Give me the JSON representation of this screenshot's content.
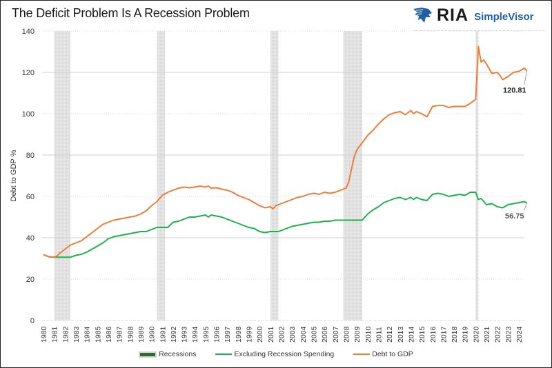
{
  "header": {
    "title": "The Deficit Problem Is A Recession Problem",
    "logo_mark": "eagle-logo-icon",
    "logo_text": "RIA",
    "logo_subtext": "SimpleVisor"
  },
  "colors": {
    "debt_to_gdp": "#ef7b35",
    "excluding_recession": "#19b34a",
    "recession_fill": "#d4d4d4",
    "recession_legend": "#2e6b2e",
    "logo_blue": "#1f5fa8"
  },
  "chart_data": {
    "type": "line",
    "title": "The Deficit Problem Is A Recession Problem",
    "xlabel": "",
    "ylabel": "Debt to GDP %",
    "ylim": [
      0,
      140
    ],
    "xlim": [
      1980,
      2024.75
    ],
    "yticks": [
      0,
      20,
      40,
      60,
      80,
      100,
      120,
      140
    ],
    "xticks": [
      "1980",
      "1981",
      "1982",
      "1983",
      "1984",
      "1985",
      "1986",
      "1987",
      "1988",
      "1989",
      "1990",
      "1991",
      "1992",
      "1993",
      "1994",
      "1995",
      "1996",
      "1997",
      "1998",
      "1999",
      "2000",
      "2001",
      "2002",
      "2003",
      "2004",
      "2005",
      "2006",
      "2007",
      "2008",
      "2009",
      "2010",
      "2011",
      "2012",
      "2013",
      "2014",
      "2015",
      "2016",
      "2017",
      "2018",
      "2019",
      "2020",
      "2021",
      "2022",
      "2023",
      "2024"
    ],
    "grid": true,
    "legend_position": "bottom",
    "recessions": [
      {
        "start": 1981.0,
        "end": 1982.5
      },
      {
        "start": 1990.5,
        "end": 1991.25
      },
      {
        "start": 2001.0,
        "end": 2001.75
      },
      {
        "start": 2007.75,
        "end": 2009.5
      },
      {
        "start": 2020.0,
        "end": 2020.25
      }
    ],
    "series": [
      {
        "name": "Debt to GDP",
        "x": [
          1980,
          1980.5,
          1981,
          1981.25,
          1981.5,
          1982,
          1982.5,
          1983,
          1983.5,
          1984,
          1984.5,
          1985,
          1985.5,
          1986,
          1986.5,
          1987,
          1987.5,
          1988,
          1988.5,
          1989,
          1989.5,
          1990,
          1990.5,
          1991,
          1991.5,
          1992,
          1992.5,
          1993,
          1993.5,
          1994,
          1994.5,
          1995,
          1995.25,
          1995.5,
          1996,
          1996.5,
          1997,
          1997.5,
          1998,
          1998.5,
          1999,
          1999.5,
          2000,
          2000.5,
          2001,
          2001.25,
          2001.5,
          2002,
          2002.5,
          2003,
          2003.5,
          2004,
          2004.5,
          2005,
          2005.5,
          2006,
          2006.5,
          2007,
          2007.5,
          2008,
          2008.25,
          2008.5,
          2008.75,
          2009,
          2009.5,
          2010,
          2010.5,
          2011,
          2011.5,
          2012,
          2012.5,
          2013,
          2013.5,
          2014,
          2014.25,
          2014.5,
          2015,
          2015.5,
          2016,
          2016.5,
          2017,
          2017.5,
          2018,
          2018.5,
          2019,
          2019.5,
          2020,
          2020.25,
          2020.5,
          2020.75,
          2021,
          2021.5,
          2022,
          2022.25,
          2022.5,
          2023,
          2023.5,
          2024,
          2024.5,
          2024.75
        ],
        "values": [
          31.8,
          30.8,
          30.6,
          31.2,
          32.5,
          34.5,
          36.5,
          37.5,
          38.5,
          40.5,
          42.5,
          44.5,
          46.5,
          47.5,
          48.5,
          49.0,
          49.5,
          50.0,
          50.5,
          51.5,
          53.0,
          55.5,
          57.5,
          60.5,
          62.0,
          63.0,
          64.0,
          64.5,
          64.2,
          64.5,
          65.0,
          64.5,
          65.0,
          64.0,
          64.2,
          63.5,
          63.0,
          62.0,
          60.5,
          59.5,
          58.5,
          57.0,
          55.5,
          54.5,
          55.0,
          54.0,
          55.5,
          56.5,
          57.5,
          58.5,
          59.5,
          60.0,
          61.0,
          61.5,
          61.0,
          62.0,
          61.5,
          62.0,
          63.0,
          64.0,
          67.0,
          73.0,
          79.0,
          82.5,
          86.0,
          89.5,
          92.0,
          95.0,
          97.5,
          99.5,
          100.5,
          101.0,
          99.5,
          101.5,
          100.0,
          101.0,
          100.0,
          98.5,
          103.5,
          104.0,
          104.0,
          103.0,
          103.5,
          103.5,
          103.5,
          105.0,
          107.0,
          132.5,
          125.0,
          126.0,
          124.0,
          119.5,
          120.0,
          118.5,
          116.5,
          118.0,
          120.0,
          120.5,
          122.0,
          120.81
        ]
      },
      {
        "name": "Excluding Recession Spending",
        "x": [
          1980,
          1980.5,
          1981,
          1981.5,
          1982,
          1982.5,
          1983,
          1983.5,
          1984,
          1984.5,
          1985,
          1985.5,
          1986,
          1986.5,
          1987,
          1987.5,
          1988,
          1988.5,
          1989,
          1989.5,
          1990,
          1990.5,
          1991,
          1991.25,
          1991.5,
          1992,
          1992.5,
          1993,
          1993.5,
          1994,
          1994.5,
          1995,
          1995.25,
          1995.5,
          1996,
          1996.5,
          1997,
          1997.5,
          1998,
          1998.5,
          1999,
          1999.5,
          2000,
          2000.5,
          2001,
          2001.75,
          2002,
          2002.5,
          2003,
          2003.5,
          2004,
          2004.5,
          2005,
          2005.5,
          2006,
          2006.5,
          2007,
          2007.75,
          2008,
          2009.5,
          2010,
          2010.5,
          2011,
          2011.5,
          2012,
          2012.5,
          2013,
          2013.5,
          2014,
          2014.25,
          2014.5,
          2015,
          2015.5,
          2016,
          2016.5,
          2017,
          2017.5,
          2018,
          2018.5,
          2019,
          2019.5,
          2020,
          2020.25,
          2020.5,
          2021,
          2021.5,
          2022,
          2022.5,
          2023,
          2023.5,
          2024,
          2024.5,
          2024.75
        ],
        "values": [
          31.8,
          30.8,
          30.6,
          30.6,
          30.6,
          30.6,
          31.5,
          32.0,
          33.0,
          34.5,
          36.0,
          37.5,
          39.5,
          40.5,
          41.0,
          41.5,
          42.0,
          42.5,
          43.0,
          43.0,
          44.0,
          45.0,
          45.0,
          45.0,
          45.0,
          47.5,
          48.0,
          49.0,
          50.0,
          50.0,
          50.5,
          51.0,
          50.0,
          51.0,
          50.5,
          50.0,
          49.0,
          48.0,
          47.0,
          46.0,
          45.0,
          44.5,
          43.0,
          42.5,
          43.0,
          43.0,
          43.5,
          44.5,
          45.5,
          46.0,
          46.5,
          47.0,
          47.5,
          47.5,
          48.0,
          48.0,
          48.5,
          48.5,
          48.5,
          48.5,
          51.5,
          53.5,
          55.0,
          57.0,
          58.0,
          59.0,
          59.5,
          58.5,
          59.5,
          58.5,
          59.5,
          58.5,
          58.0,
          61.0,
          61.5,
          61.0,
          60.0,
          60.5,
          61.0,
          60.5,
          62.0,
          62.0,
          58.5,
          59.0,
          56.0,
          56.5,
          55.0,
          54.5,
          56.0,
          56.5,
          57.0,
          57.5,
          56.75
        ]
      }
    ],
    "annotations": [
      {
        "series": "Debt to GDP",
        "x": 2024.75,
        "label": "120.81"
      },
      {
        "series": "Excluding Recession Spending",
        "x": 2024.75,
        "label": "56.75"
      }
    ],
    "legend": [
      {
        "label": "Recessions",
        "kind": "recession"
      },
      {
        "label": "Excluding Recession Spending",
        "kind": "excluding_recession"
      },
      {
        "label": "Debt to GDP",
        "kind": "debt_to_gdp"
      }
    ]
  }
}
